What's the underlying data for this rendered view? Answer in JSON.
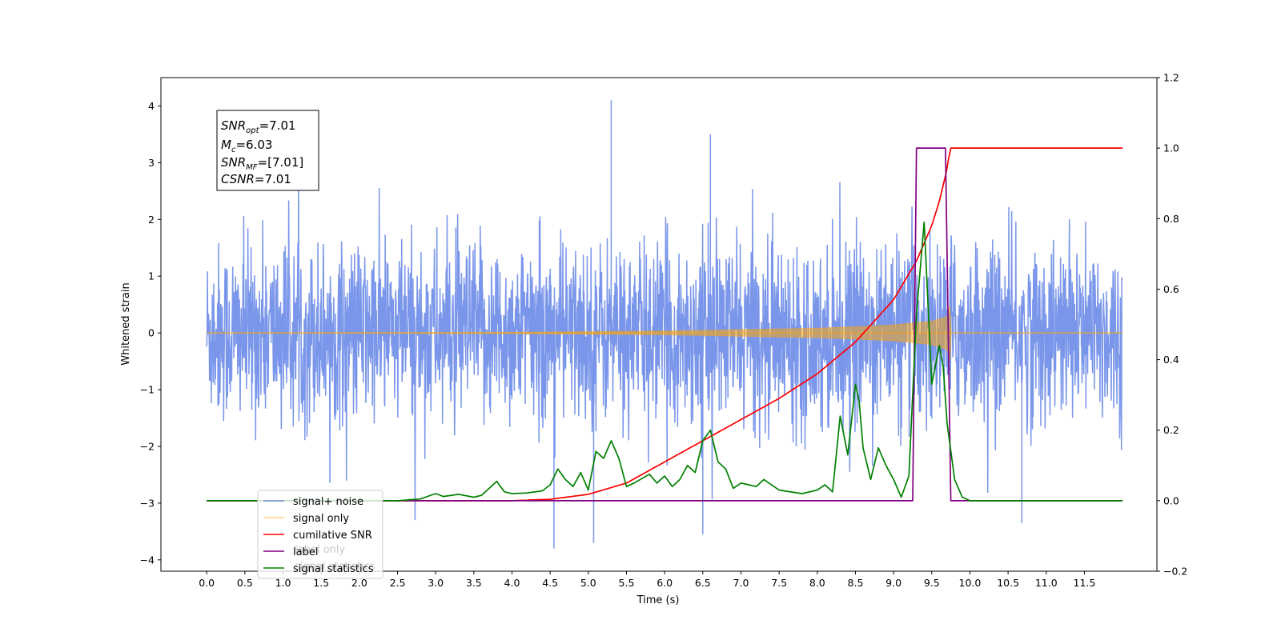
{
  "chart_data": {
    "type": "line",
    "title": "",
    "xlabel": "Time (s)",
    "ylabel_left": "Whitened strain",
    "ylabel_right": "",
    "xlim": [
      -0.6,
      12.45
    ],
    "ylim_left": [
      -4.2,
      4.5
    ],
    "ylim_right": [
      -0.2,
      1.2
    ],
    "grid": false,
    "legend_placement": "lower-left",
    "x_ticks": [
      "0.0",
      "0.5",
      "1.0",
      "1.5",
      "2.0",
      "2.5",
      "3.0",
      "3.5",
      "4.0",
      "4.5",
      "5.0",
      "5.5",
      "6.0",
      "6.5",
      "7.0",
      "7.5",
      "8.0",
      "8.5",
      "9.0",
      "9.5",
      "10.0",
      "10.5",
      "11.0",
      "11.5"
    ],
    "y_ticks_left": [
      "4",
      "3",
      "2",
      "1",
      "0",
      "−1",
      "−2",
      "−3",
      "−4"
    ],
    "y_ticks_right": [
      "1.2",
      "1.0",
      "0.8",
      "0.6",
      "0.4",
      "0.2",
      "0.0",
      "−0.2"
    ],
    "annotation": {
      "lines": [
        {
          "base": "SNR",
          "sub": "opt",
          "rest": "=7.01"
        },
        {
          "base": "M",
          "sub": "c",
          "rest": "=6.03"
        },
        {
          "base": "SNR",
          "sub": "MF",
          "rest": "=[7.01]"
        },
        {
          "base": "CSNR",
          "sub": "",
          "rest": "=7.01"
        }
      ]
    },
    "series": [
      {
        "name": "signal+ noise",
        "color": "#4169e1",
        "axis": "left",
        "kind": "noise",
        "x_range": [
          0.0,
          11.99
        ],
        "typical_range": [
          -1.8,
          1.8
        ],
        "max_peak": 4.1,
        "min_peak": -3.8
      },
      {
        "name": "signal only",
        "color": "#ffa500",
        "axis": "left",
        "kind": "chirp",
        "x_range": [
          0.0,
          11.99
        ],
        "envelope": {
          "x": [
            0,
            4,
            6,
            7,
            8,
            8.5,
            9,
            9.5,
            9.7,
            9.74,
            9.75,
            12
          ],
          "amp": [
            0,
            0.01,
            0.04,
            0.07,
            0.1,
            0.13,
            0.17,
            0.25,
            0.35,
            0.6,
            0,
            0
          ]
        }
      },
      {
        "name": "cumilative SNR",
        "color": "#ff0000",
        "axis": "right",
        "x": [
          0,
          4,
          4.5,
          5,
          5.5,
          6,
          6.5,
          7,
          7.5,
          8,
          8.5,
          9,
          9.3,
          9.5,
          9.6,
          9.7,
          9.74,
          12
        ],
        "y": [
          0,
          0,
          0.004,
          0.018,
          0.05,
          0.11,
          0.17,
          0.23,
          0.29,
          0.36,
          0.45,
          0.57,
          0.68,
          0.78,
          0.85,
          0.94,
          1.0,
          1.0
        ]
      },
      {
        "name": "label",
        "color": "#800080",
        "axis": "right",
        "x": [
          0,
          9.25,
          9.3,
          9.68,
          9.75,
          12
        ],
        "y": [
          0,
          0,
          1,
          1,
          0,
          0
        ]
      },
      {
        "name": "signal statistics",
        "color": "#008000",
        "axis": "right",
        "x": [
          0,
          0.5,
          1,
          1.5,
          2,
          2.5,
          2.8,
          3.0,
          3.1,
          3.3,
          3.5,
          3.6,
          3.8,
          3.9,
          4.0,
          4.2,
          4.4,
          4.5,
          4.6,
          4.7,
          4.8,
          4.9,
          5.0,
          5.1,
          5.2,
          5.3,
          5.4,
          5.5,
          5.6,
          5.8,
          5.9,
          6.0,
          6.1,
          6.2,
          6.3,
          6.4,
          6.5,
          6.6,
          6.7,
          6.8,
          6.9,
          7.0,
          7.1,
          7.2,
          7.3,
          7.5,
          7.8,
          8.0,
          8.1,
          8.2,
          8.3,
          8.4,
          8.5,
          8.55,
          8.6,
          8.7,
          8.8,
          8.9,
          9.0,
          9.1,
          9.2,
          9.3,
          9.4,
          9.5,
          9.6,
          9.65,
          9.7,
          9.8,
          9.9,
          10.0,
          10.2,
          11,
          12
        ],
        "y": [
          0,
          0,
          0,
          0,
          0,
          0,
          0.005,
          0.02,
          0.012,
          0.018,
          0.01,
          0.015,
          0.055,
          0.025,
          0.02,
          0.022,
          0.028,
          0.045,
          0.09,
          0.06,
          0.04,
          0.08,
          0.03,
          0.14,
          0.12,
          0.17,
          0.12,
          0.04,
          0.05,
          0.075,
          0.05,
          0.07,
          0.04,
          0.06,
          0.1,
          0.08,
          0.17,
          0.2,
          0.11,
          0.09,
          0.035,
          0.05,
          0.045,
          0.04,
          0.06,
          0.03,
          0.02,
          0.03,
          0.045,
          0.025,
          0.24,
          0.13,
          0.33,
          0.28,
          0.15,
          0.06,
          0.15,
          0.1,
          0.06,
          0.01,
          0.07,
          0.53,
          0.79,
          0.33,
          0.44,
          0.38,
          0.22,
          0.06,
          0.01,
          0.0,
          0,
          0,
          0
        ]
      }
    ]
  },
  "legend": {
    "items": [
      "signal+ noise",
      "signal only",
      "cumilative SNR",
      "label",
      "signal statistics"
    ],
    "ghost_items": [
      "label only",
      "signal statistics"
    ]
  }
}
